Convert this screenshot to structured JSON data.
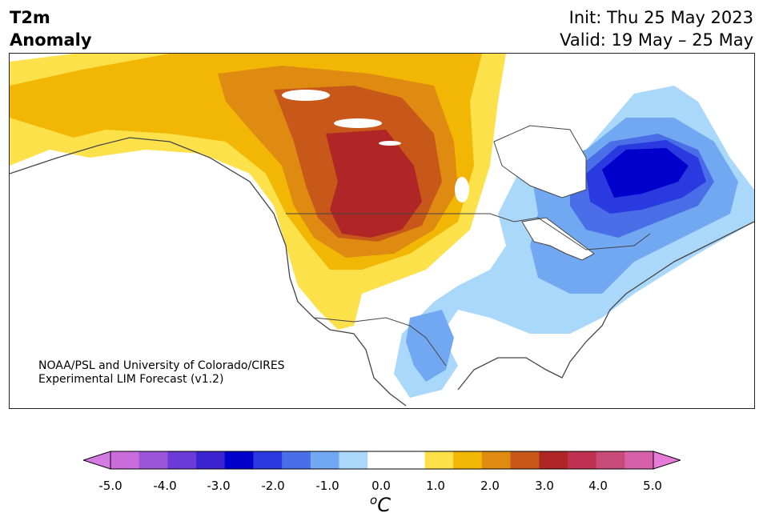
{
  "title": {
    "left_line1": "T2m",
    "left_line2": "Anomaly",
    "right_line1": "Init: Thu 25 May 2023",
    "right_line2": "Valid: 19 May – 25 May"
  },
  "credit": {
    "line1": "NOAA/PSL and University of Colorado/CIRES",
    "line2": "Experimental LIM Forecast (v1.2)"
  },
  "colorbar": {
    "unit_base": "C",
    "unit_sup": "o",
    "tick_labels": [
      "-5.0",
      "-4.0",
      "-3.0",
      "-2.0",
      "-1.0",
      "0.0",
      "1.0",
      "2.0",
      "3.0",
      "4.0",
      "5.0"
    ],
    "bins": [
      "#c86ddb",
      "#9b55d9",
      "#6b3ad8",
      "#3a22cf",
      "#0000cc",
      "#2a3ae0",
      "#4a6ee8",
      "#72a8f2",
      "#aad8fb",
      "#ffffff",
      "#ffffff",
      "#fde14a",
      "#f2b705",
      "#df8a10",
      "#c8581a",
      "#b02525",
      "#c03050",
      "#c84a78",
      "#d760aa"
    ],
    "under_color": "#d67be6",
    "over_color": "#e77cd8"
  }
}
